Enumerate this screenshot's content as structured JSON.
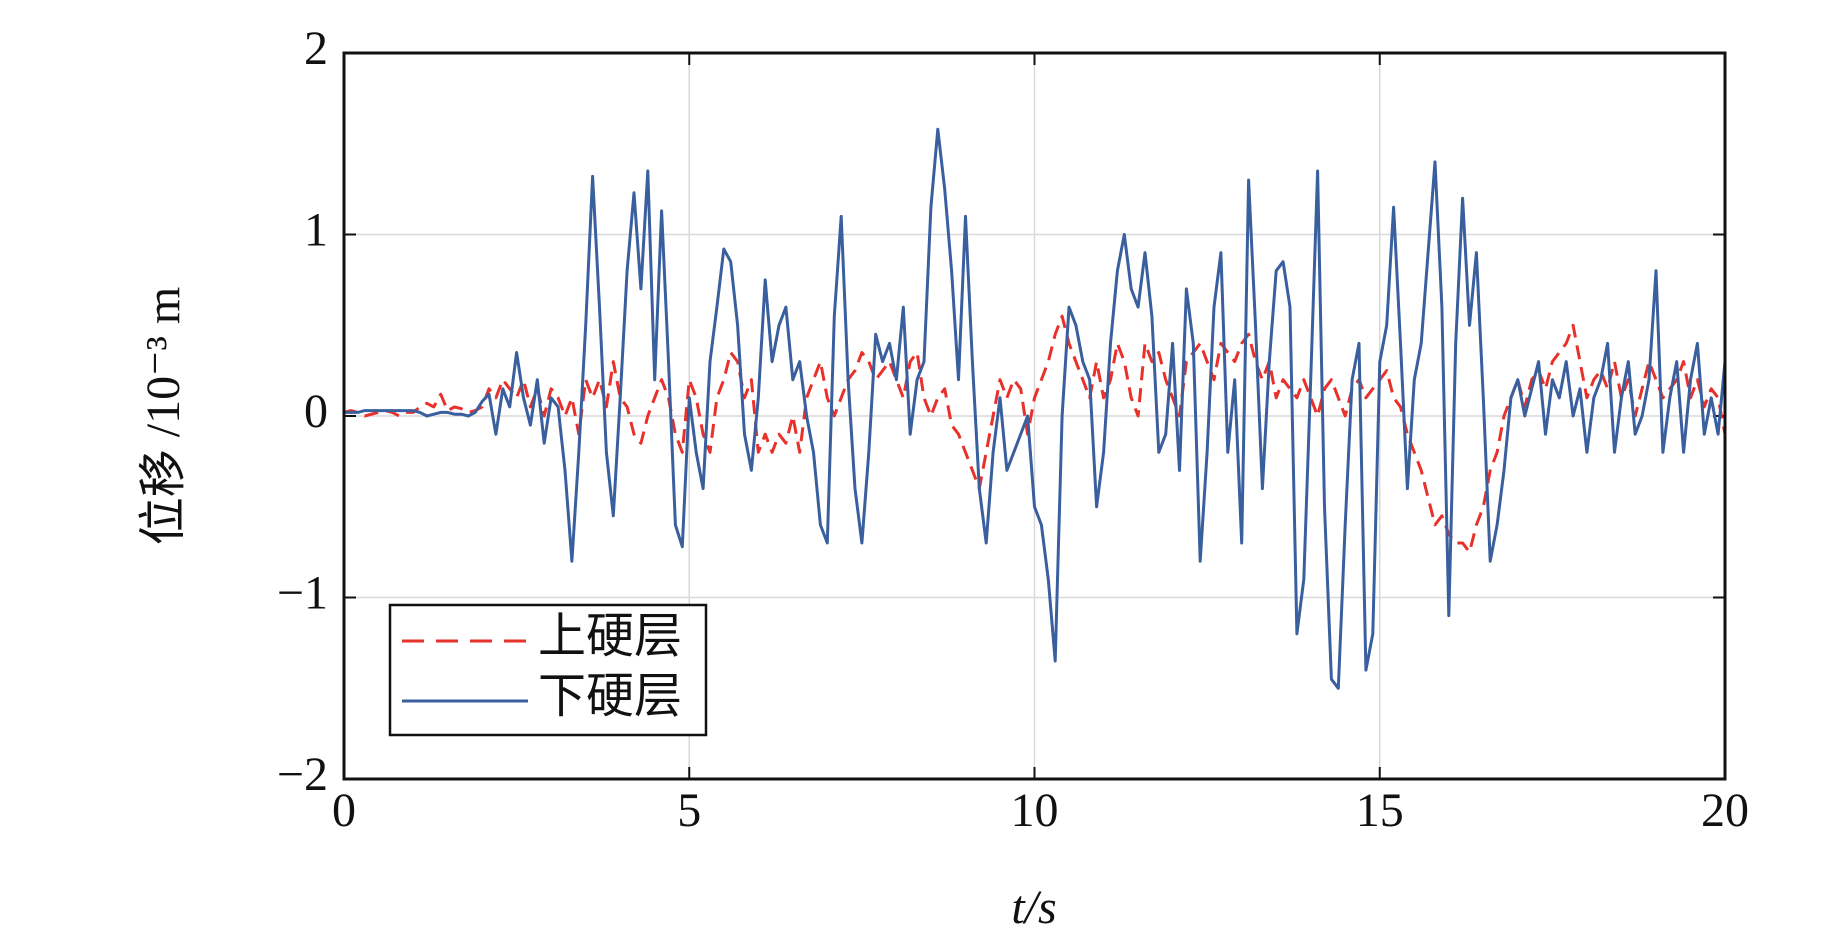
{
  "chart_data": {
    "type": "line",
    "xlabel": "t/s",
    "ylabel": "位移 /10⁻³ m",
    "xlim": [
      0,
      20
    ],
    "xticks": [
      0,
      5,
      10,
      15,
      20
    ],
    "ylim": [
      -2,
      2
    ],
    "yticks": [
      {
        "value": -2,
        "label": "−2"
      },
      {
        "value": -1,
        "label": "−1"
      },
      0,
      1,
      2
    ],
    "grid": true,
    "legend": "lower left",
    "x": [
      0,
      0.1,
      0.2,
      0.3,
      0.4,
      0.5,
      0.6,
      0.7,
      0.8,
      0.9,
      1,
      1.1,
      1.2,
      1.3,
      1.4,
      1.5,
      1.6,
      1.7,
      1.8,
      1.9,
      2,
      2.1,
      2.2,
      2.3,
      2.4,
      2.5,
      2.6,
      2.7,
      2.8,
      2.9,
      3,
      3.1,
      3.2,
      3.3,
      3.4,
      3.5,
      3.6,
      3.7,
      3.8,
      3.9,
      4,
      4.1,
      4.2,
      4.3,
      4.4,
      4.5,
      4.6,
      4.7,
      4.8,
      4.9,
      5,
      5.1,
      5.2,
      5.3,
      5.4,
      5.5,
      5.6,
      5.7,
      5.8,
      5.9,
      6,
      6.1,
      6.2,
      6.3,
      6.4,
      6.5,
      6.6,
      6.7,
      6.8,
      6.9,
      7,
      7.1,
      7.2,
      7.3,
      7.4,
      7.5,
      7.6,
      7.7,
      7.8,
      7.9,
      8,
      8.1,
      8.2,
      8.3,
      8.4,
      8.5,
      8.6,
      8.7,
      8.8,
      8.9,
      9,
      9.1,
      9.2,
      9.3,
      9.4,
      9.5,
      9.6,
      9.7,
      9.8,
      9.9,
      10,
      10.1,
      10.2,
      10.3,
      10.4,
      10.5,
      10.6,
      10.7,
      10.8,
      10.9,
      11,
      11.1,
      11.2,
      11.3,
      11.4,
      11.5,
      11.6,
      11.7,
      11.8,
      11.9,
      12,
      12.1,
      12.2,
      12.3,
      12.4,
      12.5,
      12.6,
      12.7,
      12.8,
      12.9,
      13,
      13.1,
      13.2,
      13.3,
      13.4,
      13.5,
      13.6,
      13.7,
      13.8,
      13.9,
      14,
      14.1,
      14.2,
      14.3,
      14.4,
      14.5,
      14.6,
      14.7,
      14.8,
      14.9,
      15,
      15.1,
      15.2,
      15.3,
      15.4,
      15.5,
      15.6,
      15.7,
      15.8,
      15.9,
      16,
      16.1,
      16.2,
      16.3,
      16.4,
      16.5,
      16.6,
      16.7,
      16.8,
      16.9,
      17,
      17.1,
      17.2,
      17.3,
      17.4,
      17.5,
      17.6,
      17.7,
      17.8,
      17.9,
      18,
      18.1,
      18.2,
      18.3,
      18.4,
      18.5,
      18.6,
      18.7,
      18.8,
      18.9,
      19,
      19.1,
      19.2,
      19.3,
      19.4,
      19.5,
      19.6,
      19.7,
      19.8,
      19.9,
      20
    ],
    "series": [
      {
        "name": "上硬层",
        "color": "#e8312a",
        "dash": true,
        "values": [
          0.02,
          0.03,
          0.02,
          0.0,
          0.01,
          0.02,
          0.03,
          0.02,
          0.0,
          0.02,
          0.02,
          0.05,
          0.07,
          0.05,
          0.12,
          0.03,
          0.05,
          0.04,
          0.02,
          0.03,
          0.05,
          0.15,
          0.1,
          0.2,
          0.15,
          0.1,
          0.2,
          0.05,
          0.15,
          0.0,
          0.15,
          0.1,
          0.0,
          0.1,
          -0.1,
          0.2,
          0.1,
          0.2,
          0.05,
          0.3,
          0.1,
          0.05,
          -0.1,
          -0.15,
          0.0,
          0.1,
          0.2,
          0.1,
          -0.1,
          -0.2,
          0.2,
          0.1,
          -0.1,
          -0.2,
          0.1,
          0.2,
          0.35,
          0.3,
          0.1,
          0.2,
          -0.2,
          -0.1,
          -0.2,
          -0.1,
          -0.15,
          0.0,
          -0.2,
          0.1,
          0.2,
          0.3,
          0.1,
          0.0,
          0.1,
          0.2,
          0.25,
          0.35,
          0.3,
          0.2,
          0.25,
          0.3,
          0.2,
          0.1,
          0.3,
          0.35,
          0.1,
          0.0,
          0.1,
          0.15,
          -0.05,
          -0.1,
          -0.2,
          -0.3,
          -0.4,
          -0.2,
          0.0,
          0.2,
          0.1,
          0.2,
          0.15,
          -0.1,
          0.1,
          0.2,
          0.3,
          0.45,
          0.55,
          0.4,
          0.3,
          0.2,
          0.1,
          0.3,
          0.1,
          0.2,
          0.4,
          0.3,
          0.1,
          0.0,
          0.4,
          0.3,
          0.35,
          0.2,
          0.1,
          0.0,
          0.3,
          0.35,
          0.4,
          0.3,
          0.2,
          0.4,
          0.35,
          0.3,
          0.4,
          0.45,
          0.3,
          0.2,
          0.3,
          0.1,
          0.2,
          0.15,
          0.1,
          0.2,
          0.1,
          0.0,
          0.15,
          0.2,
          0.1,
          0.0,
          0.15,
          0.2,
          0.1,
          0.15,
          0.2,
          0.25,
          0.1,
          0.05,
          -0.1,
          -0.2,
          -0.3,
          -0.45,
          -0.6,
          -0.55,
          -0.65,
          -0.7,
          -0.7,
          -0.75,
          -0.6,
          -0.5,
          -0.3,
          -0.2,
          0.0,
          0.1,
          0.2,
          0.05,
          0.2,
          0.25,
          0.15,
          0.3,
          0.35,
          0.4,
          0.5,
          0.3,
          0.1,
          0.2,
          0.25,
          0.15,
          0.3,
          0.1,
          0.2,
          0.0,
          0.15,
          0.3,
          0.2,
          0.1,
          0.15,
          0.2,
          0.3,
          0.1,
          0.2,
          0.05,
          0.15,
          0.1,
          -0.1
        ]
      },
      {
        "name": "下硬层",
        "color": "#3a5f9e",
        "dash": false,
        "values": [
          0.02,
          0.02,
          0.02,
          0.03,
          0.03,
          0.03,
          0.03,
          0.03,
          0.03,
          0.03,
          0.03,
          0.02,
          0.0,
          0.01,
          0.02,
          0.02,
          0.01,
          0.01,
          0.0,
          0.02,
          0.08,
          0.12,
          -0.1,
          0.15,
          0.05,
          0.35,
          0.1,
          -0.05,
          0.2,
          -0.15,
          0.1,
          0.05,
          -0.3,
          -0.8,
          -0.2,
          0.5,
          1.32,
          0.6,
          -0.2,
          -0.55,
          0.1,
          0.8,
          1.23,
          0.7,
          1.35,
          0.2,
          1.13,
          0.3,
          -0.6,
          -0.72,
          0.1,
          -0.2,
          -0.4,
          0.3,
          0.6,
          0.92,
          0.85,
          0.5,
          -0.1,
          -0.3,
          0.1,
          0.75,
          0.3,
          0.5,
          0.6,
          0.2,
          0.3,
          0.0,
          -0.2,
          -0.6,
          -0.7,
          0.55,
          1.1,
          0.2,
          -0.4,
          -0.7,
          -0.2,
          0.45,
          0.3,
          0.4,
          0.2,
          0.6,
          -0.1,
          0.2,
          0.3,
          1.15,
          1.58,
          1.25,
          0.8,
          0.2,
          1.1,
          0.3,
          -0.4,
          -0.7,
          -0.2,
          0.1,
          -0.3,
          -0.2,
          -0.1,
          0.0,
          -0.5,
          -0.6,
          -0.9,
          -1.35,
          0.0,
          0.6,
          0.5,
          0.3,
          0.2,
          -0.5,
          -0.2,
          0.4,
          0.8,
          1.0,
          0.7,
          0.6,
          0.9,
          0.55,
          -0.2,
          -0.1,
          0.4,
          -0.3,
          0.7,
          0.4,
          -0.8,
          -0.2,
          0.6,
          0.9,
          -0.2,
          0.2,
          -0.7,
          1.3,
          0.5,
          -0.4,
          0.3,
          0.8,
          0.85,
          0.6,
          -1.2,
          -0.9,
          0.2,
          1.35,
          -0.5,
          -1.45,
          -1.5,
          -0.6,
          0.2,
          0.4,
          -1.4,
          -1.2,
          0.3,
          0.5,
          1.15,
          0.4,
          -0.4,
          0.2,
          0.4,
          0.9,
          1.4,
          0.6,
          -1.1,
          0.4,
          1.2,
          0.5,
          0.9,
          0.1,
          -0.8,
          -0.6,
          -0.3,
          0.1,
          0.2,
          0.0,
          0.15,
          0.3,
          -0.1,
          0.2,
          0.1,
          0.3,
          0.0,
          0.15,
          -0.2,
          0.1,
          0.2,
          0.4,
          -0.2,
          0.1,
          0.3,
          -0.1,
          0.0,
          0.2,
          0.8,
          -0.2,
          0.1,
          0.3,
          -0.2,
          0.2,
          0.4,
          -0.1,
          0.1,
          -0.1,
          0.3
        ]
      }
    ]
  }
}
